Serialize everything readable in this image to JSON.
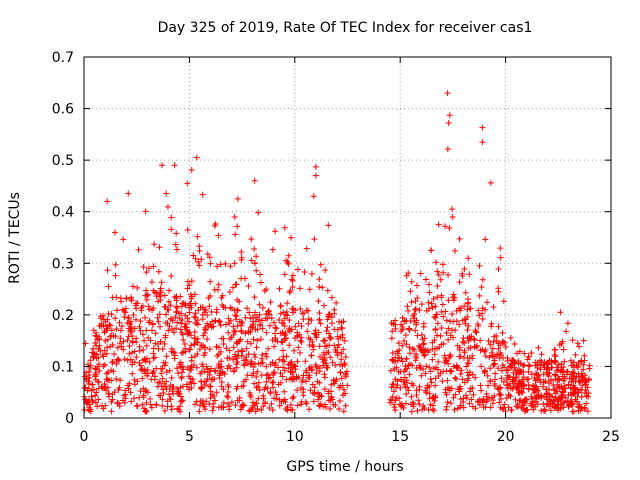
{
  "chart_data": {
    "type": "scatter",
    "title": "Day 325 of 2019, Rate Of TEC Index for receiver cas1",
    "xlabel": "GPS time / hours",
    "ylabel": "ROTI / TECUs",
    "xlim": [
      0,
      25
    ],
    "ylim": [
      0,
      0.7
    ],
    "xticks": [
      0,
      5,
      10,
      15,
      20,
      25
    ],
    "xtick_labels": [
      "0",
      "5",
      "10",
      "15",
      "20",
      "25"
    ],
    "yticks": [
      0,
      0.1,
      0.2,
      0.3,
      0.4,
      0.5,
      0.6,
      0.7
    ],
    "ytick_labels": [
      "0",
      "0.1",
      "0.2",
      "0.3",
      "0.4",
      "0.5",
      "0.6",
      "0.7"
    ],
    "grid": true,
    "marker": "plus",
    "color": "#ff0000",
    "data_gap_hours": [
      12.5,
      14.5
    ],
    "envelope": [
      {
        "x": 0.0,
        "mid": 0.04,
        "high": 0.14
      },
      {
        "x": 1.0,
        "mid": 0.1,
        "high": 0.32
      },
      {
        "x": 2.0,
        "mid": 0.11,
        "high": 0.43
      },
      {
        "x": 3.0,
        "mid": 0.12,
        "high": 0.45
      },
      {
        "x": 4.0,
        "mid": 0.12,
        "high": 0.49
      },
      {
        "x": 5.0,
        "mid": 0.11,
        "high": 0.5
      },
      {
        "x": 6.0,
        "mid": 0.11,
        "high": 0.42
      },
      {
        "x": 7.0,
        "mid": 0.1,
        "high": 0.42
      },
      {
        "x": 8.0,
        "mid": 0.1,
        "high": 0.45
      },
      {
        "x": 9.0,
        "mid": 0.1,
        "high": 0.4
      },
      {
        "x": 10.0,
        "mid": 0.1,
        "high": 0.43
      },
      {
        "x": 11.0,
        "mid": 0.1,
        "high": 0.48
      },
      {
        "x": 12.4,
        "mid": 0.09,
        "high": 0.27
      },
      {
        "x": 14.6,
        "mid": 0.09,
        "high": 0.24
      },
      {
        "x": 15.5,
        "mid": 0.1,
        "high": 0.36
      },
      {
        "x": 16.5,
        "mid": 0.11,
        "high": 0.45
      },
      {
        "x": 17.2,
        "mid": 0.12,
        "high": 0.63
      },
      {
        "x": 18.0,
        "mid": 0.11,
        "high": 0.42
      },
      {
        "x": 19.0,
        "mid": 0.1,
        "high": 0.56
      },
      {
        "x": 19.5,
        "mid": 0.08,
        "high": 0.46
      },
      {
        "x": 20.5,
        "mid": 0.05,
        "high": 0.16
      },
      {
        "x": 22.0,
        "mid": 0.05,
        "high": 0.15
      },
      {
        "x": 23.0,
        "mid": 0.05,
        "high": 0.2
      },
      {
        "x": 24.0,
        "mid": 0.05,
        "high": 0.15
      }
    ],
    "notable_points": [
      {
        "x": 17.25,
        "y": 0.63
      },
      {
        "x": 18.9,
        "y": 0.563
      },
      {
        "x": 17.3,
        "y": 0.572
      },
      {
        "x": 18.9,
        "y": 0.535
      },
      {
        "x": 5.35,
        "y": 0.505
      },
      {
        "x": 4.3,
        "y": 0.49
      },
      {
        "x": 3.7,
        "y": 0.49
      },
      {
        "x": 4.9,
        "y": 0.455
      },
      {
        "x": 8.1,
        "y": 0.46
      },
      {
        "x": 11.0,
        "y": 0.487
      },
      {
        "x": 11.0,
        "y": 0.47
      },
      {
        "x": 10.9,
        "y": 0.43
      },
      {
        "x": 2.1,
        "y": 0.435
      },
      {
        "x": 1.1,
        "y": 0.42
      },
      {
        "x": 7.3,
        "y": 0.425
      },
      {
        "x": 19.3,
        "y": 0.456
      },
      {
        "x": 22.6,
        "y": 0.205
      },
      {
        "x": 23.7,
        "y": 0.15
      }
    ],
    "dense_count": 2200
  }
}
